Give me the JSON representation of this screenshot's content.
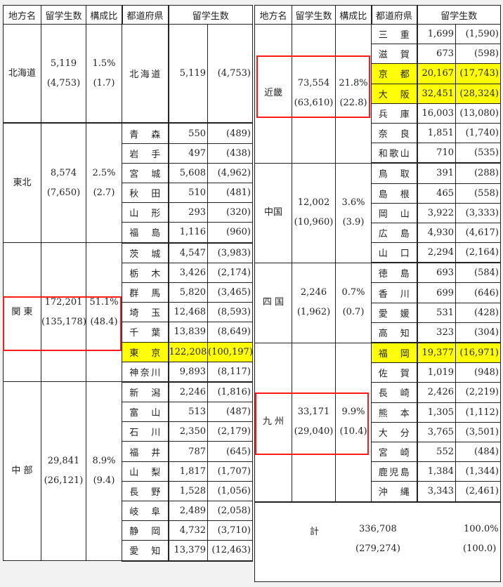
{
  "header": {
    "region": "地方名",
    "count": "留学生数",
    "ratio": "構成比",
    "pref": "都道府県",
    "pref_count": "留学生数"
  },
  "highlight_color": "#ffff00",
  "box_color": "#ff1a1a",
  "left": [
    {
      "name": "北海道",
      "count": "5,119",
      "prev": "(4,753)",
      "ratio": "1.5%",
      "prev_ratio": "(1.7)",
      "prefs": [
        {
          "name": "北海道",
          "count": "5,119",
          "prev": "(4,753)"
        }
      ]
    },
    {
      "name": "東北",
      "count": "8,574",
      "prev": "(7,650)",
      "ratio": "2.5%",
      "prev_ratio": "(2.7)",
      "prefs": [
        {
          "name": "青森",
          "count": "550",
          "prev": "(489)"
        },
        {
          "name": "岩手",
          "count": "497",
          "prev": "(438)"
        },
        {
          "name": "宮城",
          "count": "5,608",
          "prev": "(4,962)"
        },
        {
          "name": "秋田",
          "count": "510",
          "prev": "(481)"
        },
        {
          "name": "山形",
          "count": "293",
          "prev": "(320)"
        },
        {
          "name": "福島",
          "count": "1,116",
          "prev": "(960)"
        }
      ]
    },
    {
      "name": "関 東",
      "count": "172,201",
      "prev": "(135,178)",
      "ratio": "51.1%",
      "prev_ratio": "(48.4)",
      "boxed": true,
      "prefs": [
        {
          "name": "茨城",
          "count": "4,547",
          "prev": "(3,983)"
        },
        {
          "name": "栃木",
          "count": "3,426",
          "prev": "(2,174)"
        },
        {
          "name": "群馬",
          "count": "5,820",
          "prev": "(3,465)"
        },
        {
          "name": "埼玉",
          "count": "12,468",
          "prev": "(8,593)"
        },
        {
          "name": "千葉",
          "count": "13,839",
          "prev": "(8,649)"
        },
        {
          "name": "東京",
          "count": "122,208",
          "prev": "(100,197)",
          "highlight": true
        },
        {
          "name": "神奈川",
          "count": "9,893",
          "prev": "(8,117)"
        }
      ]
    },
    {
      "name": "中 部",
      "count": "29,841",
      "prev": "(26,121)",
      "ratio": "8.9%",
      "prev_ratio": "(9.4)",
      "prefs": [
        {
          "name": "新潟",
          "count": "2,246",
          "prev": "(1,816)"
        },
        {
          "name": "富山",
          "count": "513",
          "prev": "(487)"
        },
        {
          "name": "石川",
          "count": "2,350",
          "prev": "(2,179)"
        },
        {
          "name": "福井",
          "count": "787",
          "prev": "(645)"
        },
        {
          "name": "山梨",
          "count": "1,817",
          "prev": "(1,707)"
        },
        {
          "name": "長野",
          "count": "1,528",
          "prev": "(1,056)"
        },
        {
          "name": "岐阜",
          "count": "2,489",
          "prev": "(2,058)"
        },
        {
          "name": "静岡",
          "count": "4,732",
          "prev": "(3,710)"
        },
        {
          "name": "愛知",
          "count": "13,379",
          "prev": "(12,463)"
        }
      ]
    }
  ],
  "right": [
    {
      "name": "近畿",
      "count": "73,554",
      "prev": "(63,610)",
      "ratio": "21.8%",
      "prev_ratio": "(22.8)",
      "boxed": true,
      "prefs": [
        {
          "name": "三重",
          "count": "1,699",
          "prev": "(1,590)"
        },
        {
          "name": "滋賀",
          "count": "673",
          "prev": "(598)"
        },
        {
          "name": "京都",
          "count": "20,167",
          "prev": "(17,743)",
          "highlight": true
        },
        {
          "name": "大阪",
          "count": "32,451",
          "prev": "(28,324)",
          "highlight": true
        },
        {
          "name": "兵庫",
          "count": "16,003",
          "prev": "(13,080)"
        },
        {
          "name": "奈良",
          "count": "1,851",
          "prev": "(1,740)"
        },
        {
          "name": "和歌山",
          "count": "710",
          "prev": "(535)"
        }
      ]
    },
    {
      "name": "中国",
      "count": "12,002",
      "prev": "(10,960)",
      "ratio": "3.6%",
      "prev_ratio": "(3.9)",
      "prefs": [
        {
          "name": "鳥取",
          "count": "391",
          "prev": "(288)"
        },
        {
          "name": "島根",
          "count": "465",
          "prev": "(558)"
        },
        {
          "name": "岡山",
          "count": "3,922",
          "prev": "(3,333)"
        },
        {
          "name": "広島",
          "count": "4,930",
          "prev": "(4,617)"
        },
        {
          "name": "山口",
          "count": "2,294",
          "prev": "(2,164)"
        }
      ]
    },
    {
      "name": "四 国",
      "count": "2,246",
      "prev": "(1,962)",
      "ratio": "0.7%",
      "prev_ratio": "(0.7)",
      "prefs": [
        {
          "name": "徳島",
          "count": "693",
          "prev": "(584)"
        },
        {
          "name": "香川",
          "count": "699",
          "prev": "(646)"
        },
        {
          "name": "愛媛",
          "count": "531",
          "prev": "(428)"
        },
        {
          "name": "高知",
          "count": "323",
          "prev": "(304)"
        }
      ]
    },
    {
      "name": "九 州",
      "count": "33,171",
      "prev": "(29,040)",
      "ratio": "9.9%",
      "prev_ratio": "(10.4)",
      "boxed": true,
      "prefs": [
        {
          "name": "福岡",
          "count": "19,377",
          "prev": "(16,971)",
          "highlight": true
        },
        {
          "name": "佐賀",
          "count": "1,019",
          "prev": "(948)"
        },
        {
          "name": "長崎",
          "count": "2,426",
          "prev": "(2,219)"
        },
        {
          "name": "熊本",
          "count": "1,305",
          "prev": "(1,112)"
        },
        {
          "name": "大分",
          "count": "3,765",
          "prev": "(3,501)"
        },
        {
          "name": "宮崎",
          "count": "552",
          "prev": "(484)"
        },
        {
          "name": "鹿児島",
          "count": "1,384",
          "prev": "(1,344)"
        },
        {
          "name": "沖縄",
          "count": "3,343",
          "prev": "(2,461)"
        }
      ]
    }
  ],
  "total": {
    "label": "計",
    "count": "336,708",
    "prev": "(279,274)",
    "ratio": "100.0%",
    "prev_ratio": "(100.0)"
  }
}
